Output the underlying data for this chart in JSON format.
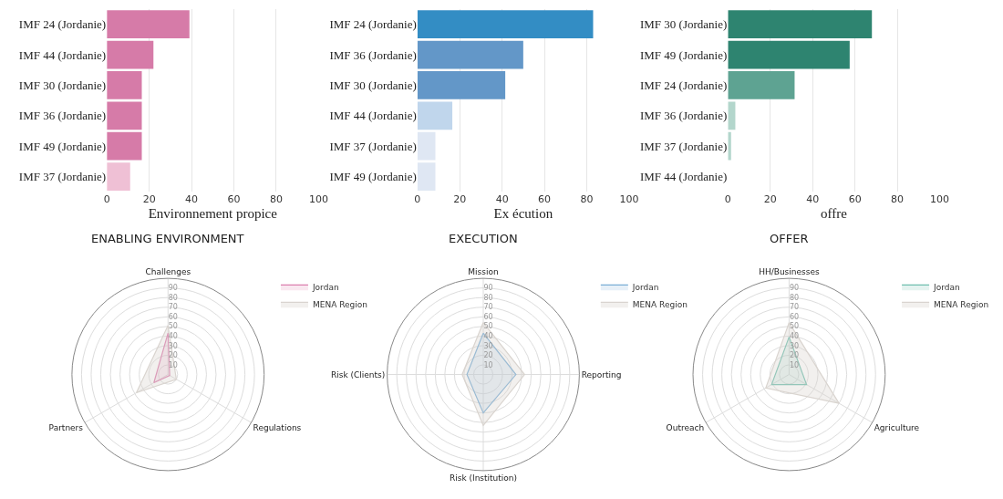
{
  "chart_data": [
    {
      "type": "bar",
      "orientation": "horizontal",
      "xlabel": "Environnement propice",
      "categories": [
        "IMF 24 (Jordanie)",
        "IMF 44 (Jordanie)",
        "IMF 30 (Jordanie)",
        "IMF 36 (Jordanie)",
        "IMF 49 (Jordanie)",
        "IMF 37 (Jordanie)"
      ],
      "values": [
        39,
        22,
        16.5,
        16.5,
        16.5,
        11
      ],
      "colors": [
        "#d67ba8",
        "#d67ba8",
        "#d67ba8",
        "#d67ba8",
        "#d67ba8",
        "#efc0d5"
      ],
      "xlim": [
        0,
        100
      ],
      "xticks": [
        0,
        20,
        40,
        60,
        80,
        100
      ],
      "grid": "x"
    },
    {
      "type": "bar",
      "orientation": "horizontal",
      "xlabel": "Ex écution",
      "categories": [
        "IMF 24 (Jordanie)",
        "IMF 36 (Jordanie)",
        "IMF 30 (Jordanie)",
        "IMF 44 (Jordanie)",
        "IMF 37 (Jordanie)",
        "IMF 49 (Jordanie)"
      ],
      "values": [
        83,
        50,
        41.5,
        16.5,
        8.5,
        8.5
      ],
      "colors": [
        "#338dc4",
        "#6397c8",
        "#6397c8",
        "#c0d6ec",
        "#dfe7f3",
        "#dfe7f3"
      ],
      "xlim": [
        0,
        100
      ],
      "xticks": [
        0,
        20,
        40,
        60,
        80,
        100
      ],
      "grid": "x"
    },
    {
      "type": "bar",
      "orientation": "horizontal",
      "xlabel": "offre",
      "categories": [
        "IMF 30 (Jordanie)",
        "IMF 49 (Jordanie)",
        "IMF 24 (Jordanie)",
        "IMF 36 (Jordanie)",
        "IMF 37 (Jordanie)",
        "IMF 44 (Jordanie)"
      ],
      "values": [
        68,
        57.5,
        31.5,
        3.5,
        1.5,
        0
      ],
      "colors": [
        "#2e8470",
        "#2e8470",
        "#5ea392",
        "#b3d6cc",
        "#b3d6cc",
        "#b3d6cc"
      ],
      "xlim": [
        0,
        100
      ],
      "xticks": [
        0,
        20,
        40,
        60,
        80,
        100
      ],
      "grid": "x"
    },
    {
      "type": "radar",
      "title": "ENABLING ENVIRONMENT",
      "categories": [
        "Challenges",
        "Regulations",
        "Partners"
      ],
      "series": [
        {
          "name": "Jordan",
          "color": "#dc7fae",
          "values": [
            43,
            2,
            17
          ]
        },
        {
          "name": "MENA Region",
          "color": "#d9d4cf",
          "values": [
            51,
            10,
            38
          ]
        }
      ],
      "ylim": [
        0,
        100
      ],
      "yticks": [
        10,
        20,
        30,
        40,
        50,
        60,
        70,
        80,
        90
      ],
      "legend": "top right",
      "grid": true
    },
    {
      "type": "radar",
      "title": "EXECUTION",
      "categories": [
        "Mission",
        "Reporting",
        "Risk (Institution)",
        "Risk (Clients)"
      ],
      "series": [
        {
          "name": "Jordan",
          "color": "#7aaed6",
          "values": [
            43,
            34,
            40,
            17
          ]
        },
        {
          "name": "MENA Region",
          "color": "#d9d4cf",
          "values": [
            54,
            43,
            53,
            22
          ]
        }
      ],
      "ylim": [
        0,
        100
      ],
      "yticks": [
        10,
        20,
        30,
        40,
        50,
        60,
        70,
        80,
        90
      ],
      "legend": "top right",
      "grid": true
    },
    {
      "type": "radar",
      "title": "OFFER",
      "categories": [
        "HH/Businesses",
        "Agriculture",
        "Outreach"
      ],
      "series": [
        {
          "name": "Jordan",
          "color": "#6fbfae",
          "values": [
            39,
            21,
            21
          ]
        },
        {
          "name": "MENA Region",
          "color": "#d9d4cf",
          "values": [
            54,
            60,
            28
          ]
        }
      ],
      "ylim": [
        0,
        100
      ],
      "yticks": [
        10,
        20,
        30,
        40,
        50,
        60,
        70,
        80,
        90
      ],
      "legend": "top right",
      "grid": true
    }
  ]
}
